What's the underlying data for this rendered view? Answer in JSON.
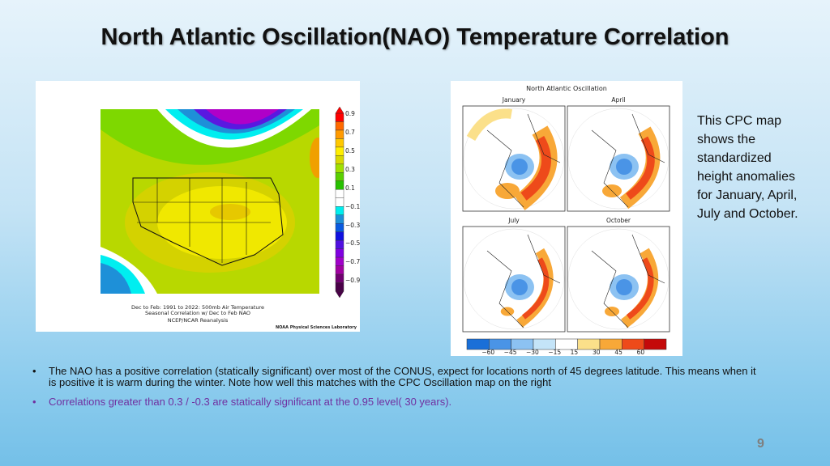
{
  "slide": {
    "title": "North Atlantic Oscillation(NAO) Temperature Correlation",
    "page_number": "9"
  },
  "left_map": {
    "caption_line1": "Dec to Feb: 1991 to 2022: 500mb Air Temperature",
    "caption_line2": "Seasonal Correlation w/ Dec to Feb NAO",
    "caption_line3": "NCEP/NCAR Reanalysis",
    "credit": "NOAA Physical Sciences Laboratory",
    "colorbar_labels": [
      "0.9",
      "0.7",
      "0.5",
      "0.3",
      "0.1",
      "−0.1",
      "−0.3",
      "−0.5",
      "−0.7",
      "−0.9"
    ],
    "colorbar_colors": [
      "#ff0000",
      "#ff6a00",
      "#ff9a00",
      "#ffc800",
      "#ffee00",
      "#d9d900",
      "#a0e000",
      "#5ad000",
      "#27c000",
      "#ffffff",
      "#ffffff",
      "#00eeee",
      "#1e90d8",
      "#0a5ae0",
      "#1010e0",
      "#5010e0",
      "#8000e0",
      "#a000c8",
      "#a000a0",
      "#700070",
      "#4a0048"
    ]
  },
  "right_map": {
    "title": "North Atlantic Oscillation",
    "panels": [
      "January",
      "April",
      "July",
      "October"
    ],
    "colorbar_labels": [
      "−60",
      "−45",
      "−30",
      "−15",
      "15",
      "30",
      "45",
      "60"
    ],
    "colorbar_colors": [
      "#1a6fd8",
      "#4a94e6",
      "#8cc2f2",
      "#c4e4f8",
      "#ffffff",
      "#fbe08a",
      "#f8a838",
      "#ee4a1a",
      "#c40a0a"
    ]
  },
  "side_text": "This CPC map shows the standardized height anomalies for January, April, July and October.",
  "bullets": [
    "The NAO has a positive correlation (statically significant) over most of the CONUS, expect for locations north of 45 degrees latitude.  This means when it is positive it is warm during the winter.  Note how well this matches with the CPC Oscillation  map on the right",
    "Correlations greater than 0.3 / -0.3 are statically significant at the 0.95 level( 30 years)."
  ],
  "bullet_symbol": "•"
}
